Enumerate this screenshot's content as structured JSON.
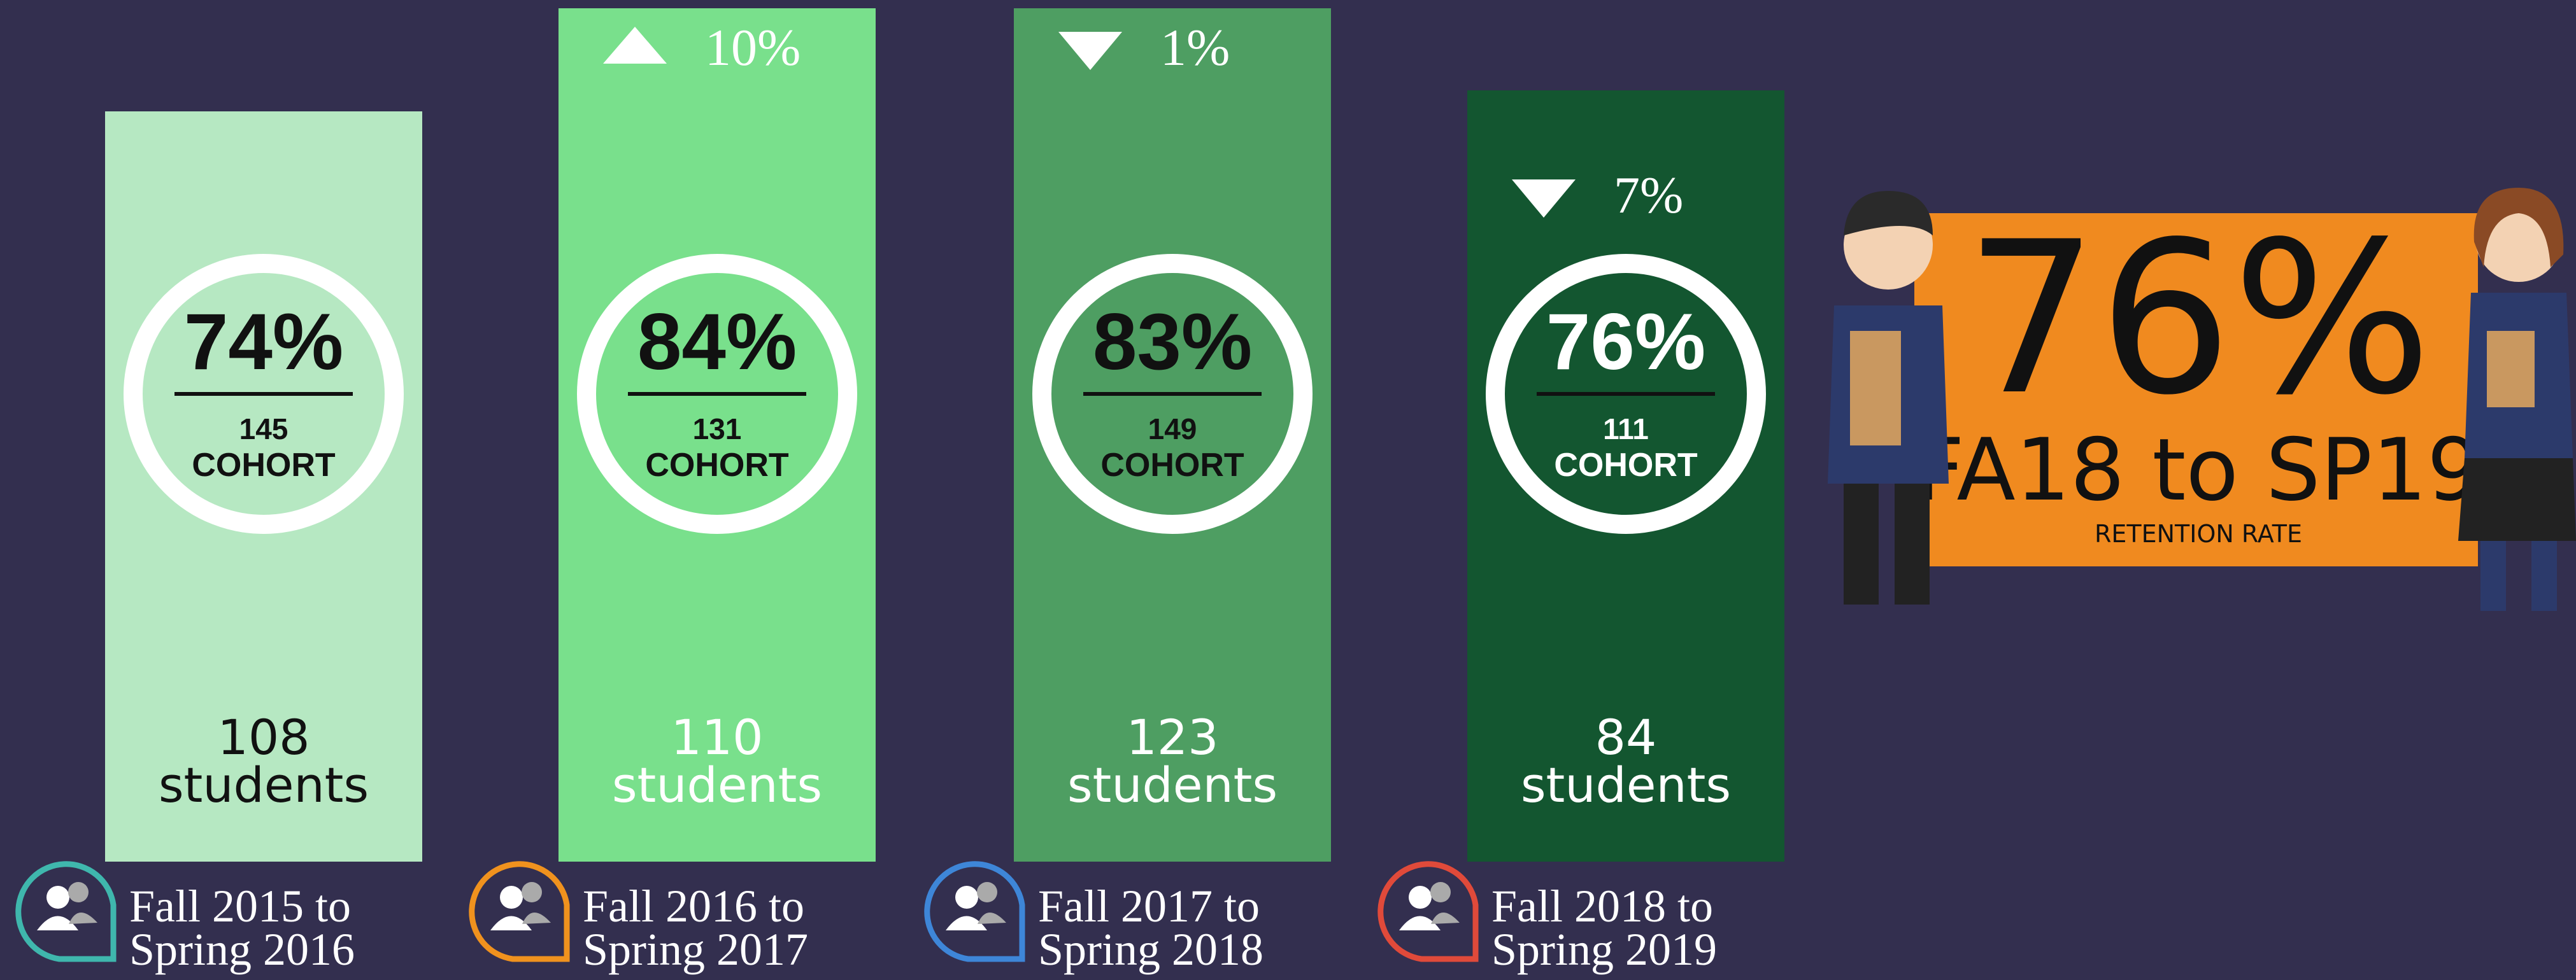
{
  "cohorts": [
    {
      "rate": "74%",
      "cohort_size": "145",
      "cohort_label": "COHORT",
      "students": "108",
      "students_label": "students",
      "term_lines": [
        "Fall 2015 to",
        "Spring 2016"
      ]
    },
    {
      "change": "10%",
      "rate": "84%",
      "cohort_size": "131",
      "cohort_label": "COHORT",
      "students": "110",
      "students_label": "students",
      "term_lines": [
        "Fall 2016 to",
        "Spring 2017"
      ]
    },
    {
      "change": "1%",
      "rate": "83%",
      "cohort_size": "149",
      "cohort_label": "COHORT",
      "students": "123",
      "students_label": "students",
      "term_lines": [
        "Fall 2017 to",
        "Spring 2018"
      ]
    },
    {
      "change": "7%",
      "rate": "76%",
      "cohort_size": "111",
      "cohort_label": "COHORT",
      "students": "84",
      "students_label": "students",
      "term_lines": [
        "Fall 2018 to",
        "Spring 2019"
      ]
    }
  ],
  "highlight": {
    "rate": "76%",
    "period": "FA18 to SP19",
    "label": "RETENTION RATE"
  }
}
